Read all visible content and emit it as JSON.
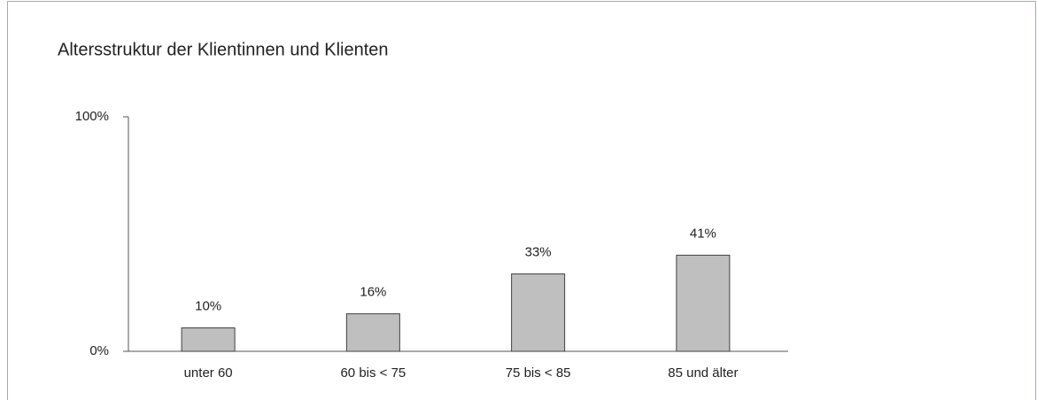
{
  "chart_data": {
    "type": "bar",
    "title": "Altersstruktur der Klientinnen und Klienten",
    "categories": [
      "unter 60",
      "60 bis < 75",
      "75 bis < 85",
      "85 und älter"
    ],
    "values": [
      10,
      16,
      33,
      41
    ],
    "value_labels": [
      "10%",
      "16%",
      "33%",
      "41%"
    ],
    "color": "#bfbfbf",
    "ylim": [
      0,
      100
    ],
    "yticks": [
      {
        "value": 0,
        "label": "0%"
      },
      {
        "value": 100,
        "label": "100%"
      }
    ],
    "grid": false
  }
}
